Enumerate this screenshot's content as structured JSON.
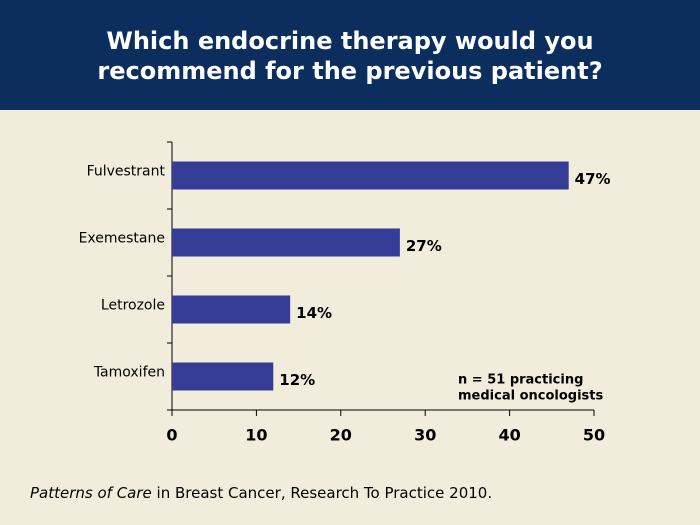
{
  "chart_data": {
    "type": "bar",
    "orientation": "horizontal",
    "title": [
      "Which endocrine therapy would you",
      "recommend for the previous patient?"
    ],
    "categories": [
      "Fulvestrant",
      "Exemestane",
      "Letrozole",
      "Tamoxifen"
    ],
    "values": [
      47,
      27,
      14,
      12
    ],
    "value_labels": [
      "47%",
      "27%",
      "14%",
      "12%"
    ],
    "color": "#353d96",
    "xlim": [
      0,
      50
    ],
    "xticks": [
      0,
      10,
      20,
      30,
      40,
      50
    ],
    "annotation": [
      "n = 51 practicing",
      "medical oncologists"
    ],
    "source": {
      "italic": "Patterns of Care",
      "text": " in Breast Cancer, Research To Practice 2010."
    }
  }
}
